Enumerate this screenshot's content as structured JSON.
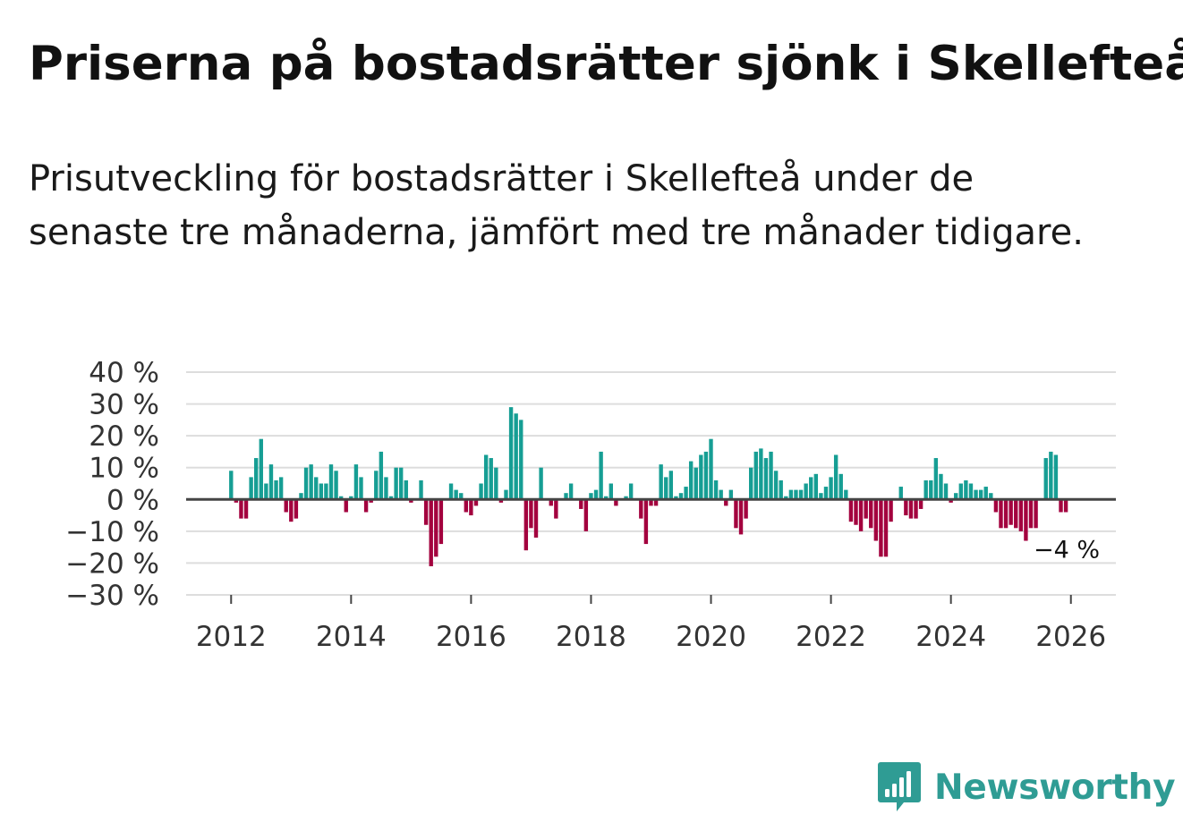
{
  "title": "Priserna på bostadsrätter sjönk i Skellefteå",
  "subtitle": "Prisutveckling för bostadsrätter i Skellefteå under de senaste tre månaderna, jämfört med tre månader tidigare.",
  "brand": {
    "name": "Newsworthy"
  },
  "colors": {
    "positive": "#169e94",
    "negative": "#a3003e",
    "grid": "#dddddd",
    "zero_line": "#444444",
    "axis_text": "#333333",
    "brand": "#2f9c94"
  },
  "chart_data": {
    "type": "bar",
    "title": "Priserna på bostadsrätter sjönk i Skellefteå",
    "xlabel": "",
    "ylabel": "",
    "ylim": [
      -30,
      40
    ],
    "y_ticks": [
      40,
      30,
      20,
      10,
      0,
      -10,
      -20,
      -30
    ],
    "y_tick_labels": [
      "40 %",
      "30 %",
      "20 %",
      "10 %",
      "0 %",
      "−10 %",
      "−20 %",
      "−30 %"
    ],
    "x_ticks": [
      2012,
      2014,
      2016,
      2018,
      2020,
      2022,
      2024,
      2026
    ],
    "x_tick_labels": [
      "2012",
      "2014",
      "2016",
      "2018",
      "2020",
      "2022",
      "2024",
      "2026"
    ],
    "x_range": [
      2011.25,
      2026.75
    ],
    "grid": true,
    "x_start": 2012.0,
    "x_step": 0.08333,
    "values": [
      9,
      -1,
      -6,
      -6,
      7,
      13,
      19,
      5,
      11,
      6,
      7,
      -4,
      -7,
      -6,
      2,
      10,
      11,
      7,
      5,
      5,
      11,
      9,
      1,
      -4,
      1,
      11,
      7,
      -4,
      -1,
      9,
      15,
      7,
      1,
      10,
      10,
      6,
      -1,
      0,
      6,
      -8,
      -21,
      -18,
      -14,
      0,
      5,
      3,
      2,
      -4,
      -5,
      -2,
      5,
      14,
      13,
      10,
      -1,
      3,
      29,
      27,
      25,
      -16,
      -9,
      -12,
      10,
      0,
      -2,
      -6,
      0,
      2,
      5,
      0,
      -3,
      -10,
      2,
      3,
      15,
      1,
      5,
      -2,
      0,
      1,
      5,
      0,
      -6,
      -14,
      -2,
      -2,
      11,
      7,
      9,
      1,
      2,
      4,
      12,
      10,
      14,
      15,
      19,
      6,
      3,
      -2,
      3,
      -9,
      -11,
      -6,
      10,
      15,
      16,
      13,
      15,
      9,
      6,
      1,
      3,
      3,
      3,
      5,
      7,
      8,
      2,
      4,
      7,
      14,
      8,
      3,
      -7,
      -8,
      -10,
      -6,
      -9,
      -13,
      -18,
      -18,
      -7,
      0,
      4,
      -5,
      -6,
      -6,
      -3,
      6,
      6,
      13,
      8,
      5,
      -1,
      2,
      5,
      6,
      5,
      3,
      3,
      4,
      2,
      -4,
      -9,
      -9,
      -8,
      -9,
      -10,
      -13,
      -9,
      -9,
      0,
      13,
      15,
      14,
      -4,
      -4
    ],
    "last_label": "−4 %"
  }
}
